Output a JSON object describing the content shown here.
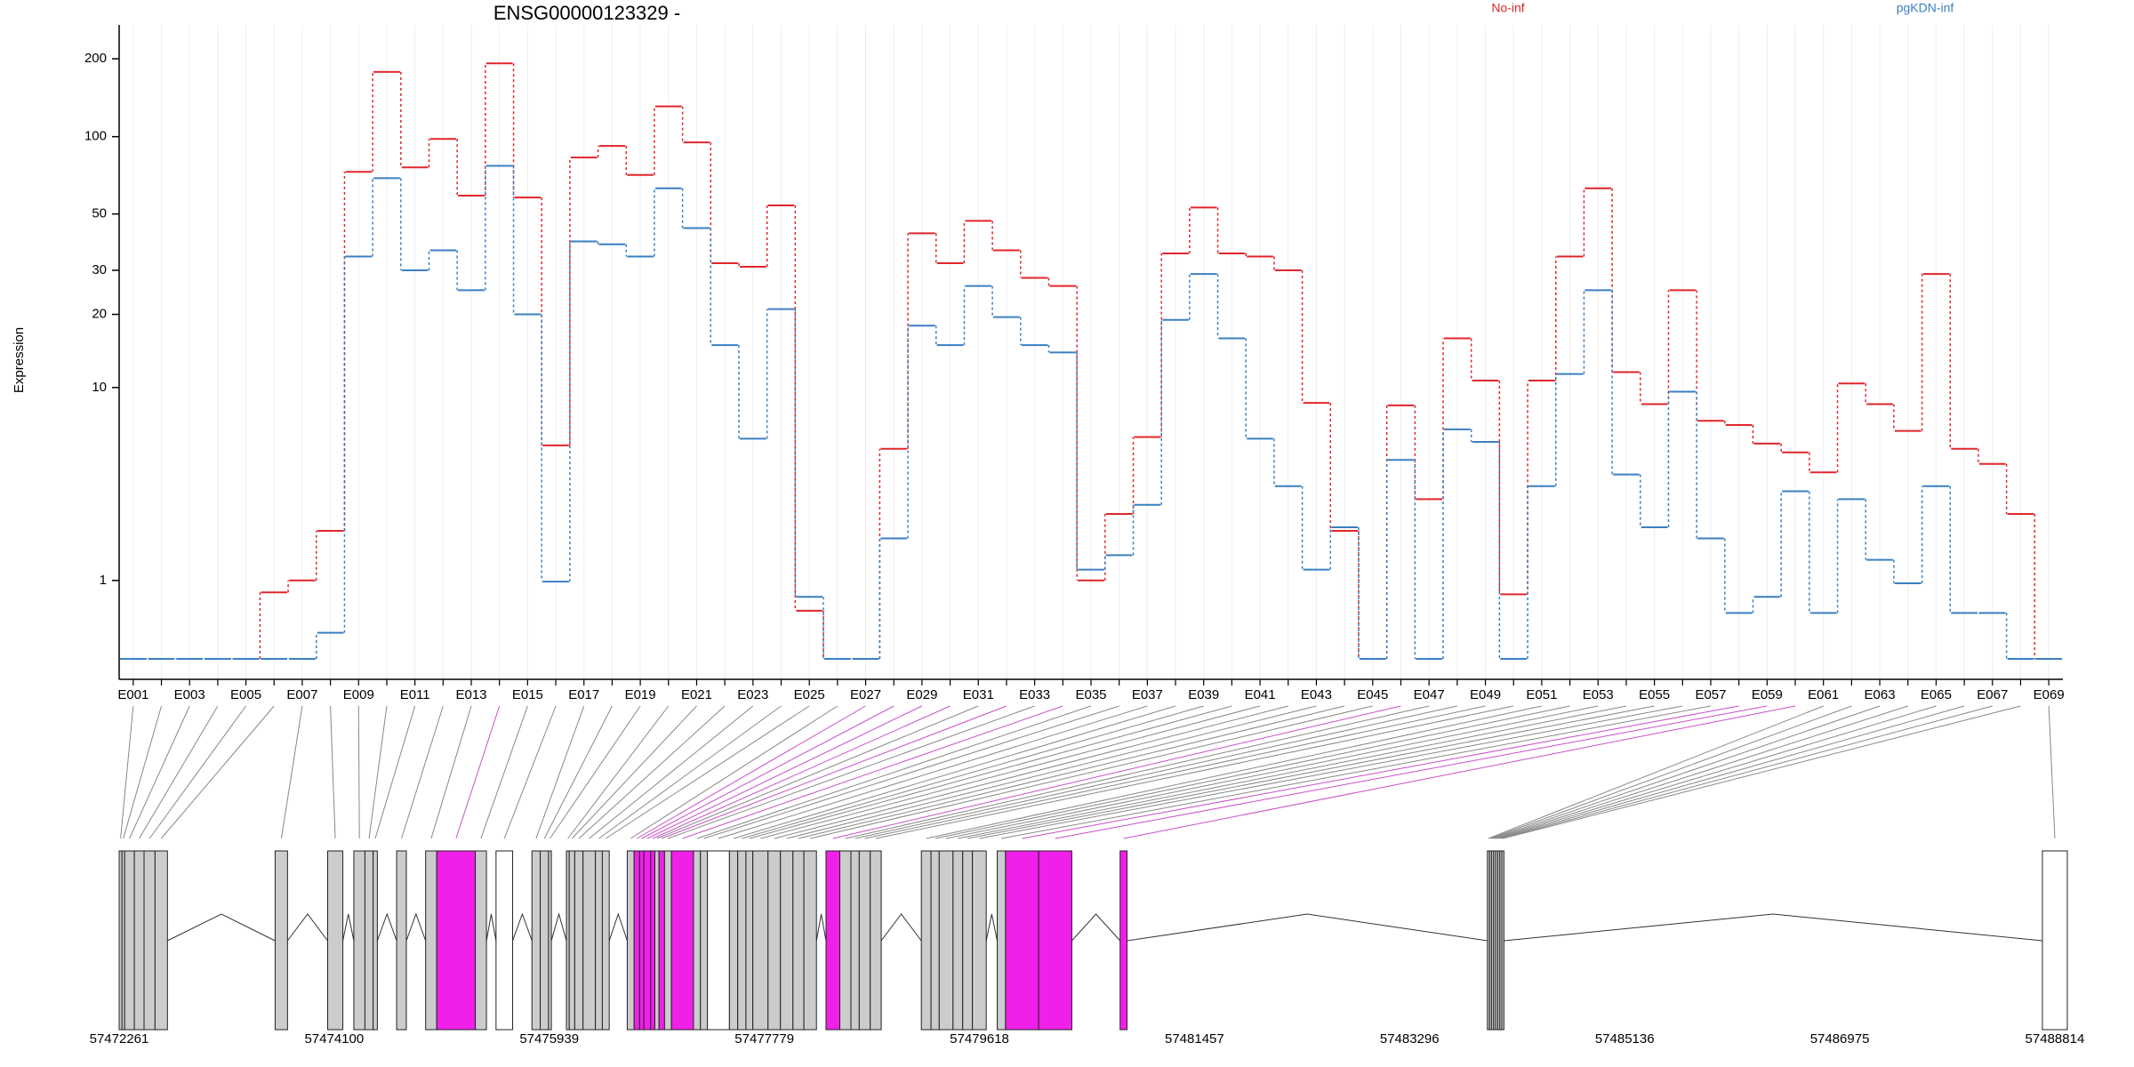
{
  "chart_data": [
    {
      "type": "step",
      "title": "ENSG00000123329 -",
      "ylabel": "Expression",
      "yscale": "log1p",
      "grid": true,
      "ylim": [
        0,
        240
      ],
      "yticks": [
        1,
        10,
        20,
        30,
        50,
        100,
        200
      ],
      "categories": [
        "E001",
        null,
        "E003",
        null,
        "E005",
        null,
        "E007",
        null,
        "E009",
        null,
        "E011",
        null,
        "E013",
        null,
        "E015",
        null,
        "E017",
        null,
        "E019",
        null,
        "E021",
        null,
        "E023",
        null,
        "E025",
        null,
        "E027",
        null,
        "E029",
        null,
        "E031",
        null,
        "E033",
        null,
        "E035",
        null,
        "E037",
        null,
        "E039",
        null,
        "E041",
        null,
        "E043",
        null,
        "E045",
        null,
        "E047",
        null,
        "E049",
        null,
        "E051",
        null,
        "E053",
        null,
        "E055",
        null,
        "E057",
        null,
        "E059",
        null,
        "E061",
        null,
        "E063",
        null,
        "E065",
        null,
        "E067",
        null,
        "E069"
      ],
      "series": [
        {
          "name": "No-inf",
          "color": "#e0262b",
          "values": [
            0,
            0,
            0,
            0,
            0,
            0.8,
            1,
            2.1,
            73,
            178,
            76,
            98,
            59,
            192,
            58,
            5.6,
            83,
            92,
            71,
            131,
            95,
            32,
            31,
            54,
            0.53,
            0,
            0,
            5.4,
            42,
            32,
            47,
            36,
            28,
            26,
            1,
            2.6,
            6.1,
            35,
            53,
            35,
            34,
            30,
            8.6,
            2.1,
            0,
            8.4,
            3.1,
            16,
            10.7,
            0.77,
            10.7,
            34,
            63,
            11.6,
            8.5,
            25,
            7.2,
            6.9,
            5.7,
            5.2,
            4.2,
            10.4,
            8.5,
            6.5,
            29,
            5.4,
            4.6,
            2.6,
            0
          ]
        },
        {
          "name": "pgKDN-inf",
          "color": "#3a7fc1",
          "values": [
            0,
            0,
            0,
            0,
            0,
            0,
            0,
            0.26,
            34,
            69,
            30,
            36,
            25,
            77,
            20,
            0.98,
            39,
            38,
            34,
            63,
            44,
            15,
            6,
            21,
            0.73,
            0,
            0,
            1.9,
            18,
            15,
            26,
            19.5,
            15,
            14,
            1.2,
            1.5,
            2.9,
            19,
            29,
            16,
            6,
            3.6,
            1.2,
            2.2,
            0,
            4.8,
            0,
            6.6,
            5.8,
            0,
            3.6,
            11.4,
            25,
            4.1,
            2.2,
            9.6,
            1.9,
            0.5,
            0.73,
            3.4,
            0.5,
            3.1,
            1.4,
            0.95,
            3.6,
            0.5,
            0.5,
            0,
            0
          ]
        }
      ]
    },
    {
      "type": "gene-model",
      "xlim": [
        57472261,
        57488921
      ],
      "xticks": [
        57472261,
        57474100,
        57475939,
        57477779,
        57479618,
        57481457,
        57483296,
        57485136,
        57486975,
        57488814
      ],
      "parts": [
        {
          "start": 57472261,
          "end": 57472285,
          "color": "#cccccc"
        },
        {
          "start": 57472285,
          "end": 57472308,
          "color": "#cccccc"
        },
        {
          "start": 57472308,
          "end": 57472391,
          "color": "#cccccc"
        },
        {
          "start": 57472391,
          "end": 57472474,
          "color": "#cccccc"
        },
        {
          "start": 57472474,
          "end": 57472568,
          "color": "#cccccc"
        },
        {
          "start": 57472568,
          "end": 57472674,
          "color": "#cccccc"
        },
        {
          "start": 57473595,
          "end": 57473701,
          "color": "#cccccc"
        },
        {
          "start": 57474044,
          "end": 57474174,
          "color": "#cccccc"
        },
        {
          "start": 57474268,
          "end": 57474363,
          "color": "#cccccc"
        },
        {
          "start": 57474363,
          "end": 57474433,
          "color": "#cccccc"
        },
        {
          "start": 57474433,
          "end": 57474469,
          "color": "#cccccc"
        },
        {
          "start": 57474634,
          "end": 57474717,
          "color": "#cccccc"
        },
        {
          "start": 57474882,
          "end": 57474977,
          "color": "#cccccc"
        },
        {
          "start": 57474977,
          "end": 57475307,
          "color": "#f020e8"
        },
        {
          "start": 57475307,
          "end": 57475402,
          "color": "#cccccc"
        },
        {
          "start": 57475484,
          "end": 57475626,
          "color": "#ffffff"
        },
        {
          "start": 57475791,
          "end": 57475862,
          "color": "#cccccc"
        },
        {
          "start": 57475862,
          "end": 57475933,
          "color": "#cccccc"
        },
        {
          "start": 57475933,
          "end": 57475957,
          "color": "#cccccc"
        },
        {
          "start": 57476086,
          "end": 57476110,
          "color": "#cccccc"
        },
        {
          "start": 57476110,
          "end": 57476157,
          "color": "#cccccc"
        },
        {
          "start": 57476157,
          "end": 57476228,
          "color": "#cccccc"
        },
        {
          "start": 57476228,
          "end": 57476334,
          "color": "#cccccc"
        },
        {
          "start": 57476334,
          "end": 57476393,
          "color": "#cccccc"
        },
        {
          "start": 57476393,
          "end": 57476452,
          "color": "#cccccc"
        },
        {
          "start": 57476606,
          "end": 57476665,
          "color": "#cccccc"
        },
        {
          "start": 57476665,
          "end": 57476712,
          "color": "#f020e8"
        },
        {
          "start": 57476712,
          "end": 57476748,
          "color": "#f020e8"
        },
        {
          "start": 57476748,
          "end": 57476807,
          "color": "#f020e8"
        },
        {
          "start": 57476807,
          "end": 57476842,
          "color": "#f020e8"
        },
        {
          "start": 57476842,
          "end": 57476878,
          "color": "#cccccc"
        },
        {
          "start": 57476878,
          "end": 57476925,
          "color": "#f020e8"
        },
        {
          "start": 57476925,
          "end": 57476984,
          "color": "#cccccc"
        },
        {
          "start": 57476984,
          "end": 57477173,
          "color": "#f020e8"
        },
        {
          "start": 57477173,
          "end": 57477232,
          "color": "#cccccc"
        },
        {
          "start": 57477232,
          "end": 57477291,
          "color": "#cccccc"
        },
        {
          "start": 57477291,
          "end": 57477480,
          "color": "#ffffff"
        },
        {
          "start": 57477480,
          "end": 57477551,
          "color": "#cccccc"
        },
        {
          "start": 57477551,
          "end": 57477621,
          "color": "#cccccc"
        },
        {
          "start": 57477621,
          "end": 57477680,
          "color": "#cccccc"
        },
        {
          "start": 57477680,
          "end": 57477810,
          "color": "#cccccc"
        },
        {
          "start": 57477810,
          "end": 57477916,
          "color": "#cccccc"
        },
        {
          "start": 57477916,
          "end": 57478023,
          "color": "#cccccc"
        },
        {
          "start": 57478023,
          "end": 57478117,
          "color": "#cccccc"
        },
        {
          "start": 57478117,
          "end": 57478224,
          "color": "#cccccc"
        },
        {
          "start": 57478306,
          "end": 57478424,
          "color": "#f020e8"
        },
        {
          "start": 57478424,
          "end": 57478519,
          "color": "#cccccc"
        },
        {
          "start": 57478519,
          "end": 57478590,
          "color": "#cccccc"
        },
        {
          "start": 57478590,
          "end": 57478684,
          "color": "#cccccc"
        },
        {
          "start": 57478684,
          "end": 57478778,
          "color": "#cccccc"
        },
        {
          "start": 57479121,
          "end": 57479204,
          "color": "#cccccc"
        },
        {
          "start": 57479204,
          "end": 57479274,
          "color": "#cccccc"
        },
        {
          "start": 57479274,
          "end": 57479392,
          "color": "#cccccc"
        },
        {
          "start": 57479392,
          "end": 57479475,
          "color": "#cccccc"
        },
        {
          "start": 57479475,
          "end": 57479558,
          "color": "#cccccc"
        },
        {
          "start": 57479558,
          "end": 57479676,
          "color": "#cccccc"
        },
        {
          "start": 57479770,
          "end": 57479841,
          "color": "#cccccc"
        },
        {
          "start": 57479841,
          "end": 57480124,
          "color": "#f020e8"
        },
        {
          "start": 57480124,
          "end": 57480408,
          "color": "#f020e8"
        },
        {
          "start": 57480821,
          "end": 57480880,
          "color": "#f020e8"
        },
        {
          "start": 57483962,
          "end": 57483980,
          "color": "#cccccc"
        },
        {
          "start": 57483980,
          "end": 57483997,
          "color": "#cccccc"
        },
        {
          "start": 57483997,
          "end": 57484015,
          "color": "#cccccc"
        },
        {
          "start": 57484015,
          "end": 57484032,
          "color": "#cccccc"
        },
        {
          "start": 57484032,
          "end": 57484050,
          "color": "#cccccc"
        },
        {
          "start": 57484050,
          "end": 57484068,
          "color": "#cccccc"
        },
        {
          "start": 57484068,
          "end": 57484085,
          "color": "#cccccc"
        },
        {
          "start": 57484085,
          "end": 57484103,
          "color": "#cccccc"
        },
        {
          "start": 57488708,
          "end": 57488921,
          "color": "#ffffff"
        }
      ]
    }
  ]
}
